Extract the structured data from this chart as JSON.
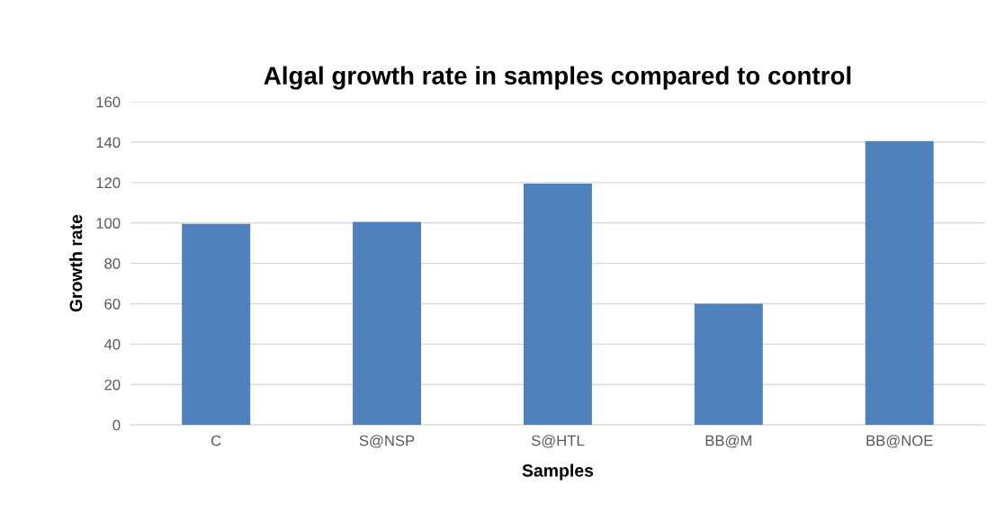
{
  "chart_data": {
    "type": "bar",
    "title": "Algal growth rate in samples compared to control",
    "xlabel": "Samples",
    "ylabel": "Growth rate",
    "categories": [
      "C",
      "S@NSP",
      "S@HTL",
      "BB@M",
      "BB@NOE"
    ],
    "values": [
      99.5,
      100.5,
      119.5,
      60,
      140.5
    ],
    "color": "#4f81bd",
    "ylim": [
      0,
      160
    ],
    "yticks": [
      0,
      20,
      40,
      60,
      80,
      100,
      120,
      140,
      160
    ],
    "grid": "y"
  }
}
